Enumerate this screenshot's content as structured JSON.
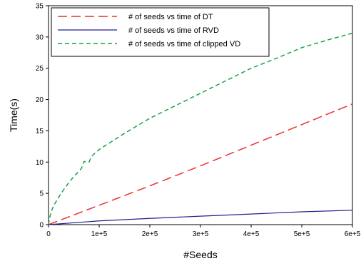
{
  "chart_data": {
    "type": "line",
    "xlabel": "#Seeds",
    "ylabel": "Time(s)",
    "xlim": [
      0,
      600000
    ],
    "ylim": [
      0,
      35
    ],
    "x_ticks": [
      0,
      100000,
      200000,
      300000,
      400000,
      500000,
      600000
    ],
    "x_tick_labels": [
      "0",
      "1e+5",
      "2e+5",
      "3e+5",
      "4e+5",
      "5e+5",
      "6e+5"
    ],
    "y_ticks": [
      0,
      5,
      10,
      15,
      20,
      25,
      30,
      35
    ],
    "y_tick_labels": [
      "0",
      "5",
      "10",
      "15",
      "20",
      "25",
      "30",
      "35"
    ],
    "grid": false,
    "legend_position": "top-left",
    "series": [
      {
        "name": "# of seeds vs time of DT",
        "color": "#e8312f",
        "style": "long-dash",
        "x": [
          0,
          100000,
          200000,
          300000,
          400000,
          500000,
          600000
        ],
        "y": [
          0,
          3.1,
          6.2,
          9.4,
          12.7,
          16.0,
          19.3
        ]
      },
      {
        "name": "# of seeds vs time of RVD",
        "color": "#1f1f8f",
        "style": "solid",
        "x": [
          0,
          100000,
          200000,
          300000,
          400000,
          500000,
          600000
        ],
        "y": [
          0,
          0.6,
          1.0,
          1.35,
          1.7,
          2.05,
          2.3
        ]
      },
      {
        "name": "# of seeds vs time of clipped VD",
        "color": "#17a34a",
        "style": "dash",
        "x": [
          0,
          2000,
          5000,
          10000,
          20000,
          30000,
          40000,
          50000,
          55000,
          60000,
          65000,
          70000,
          80000,
          85000,
          90000,
          100000,
          150000,
          200000,
          250000,
          300000,
          350000,
          400000,
          450000,
          500000,
          550000,
          600000
        ],
        "y": [
          0,
          1.0,
          2.0,
          3.0,
          4.4,
          5.6,
          6.7,
          7.7,
          8.1,
          8.5,
          9.0,
          10.1,
          10.0,
          10.9,
          11.3,
          12.0,
          14.6,
          17.0,
          19.0,
          21.0,
          23.0,
          25.0,
          26.6,
          28.3,
          29.5,
          30.6
        ]
      }
    ]
  }
}
